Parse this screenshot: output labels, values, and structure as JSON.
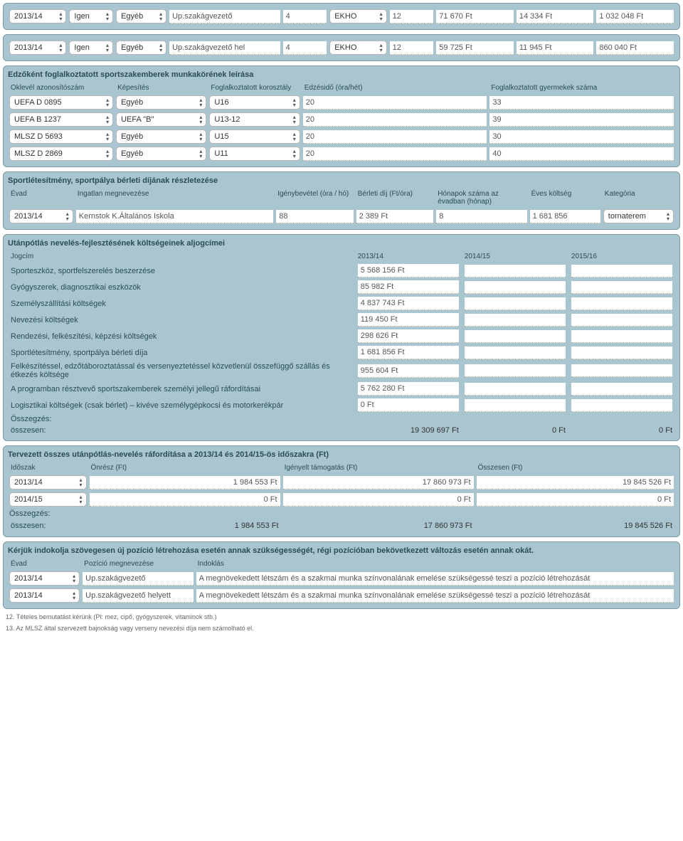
{
  "topRows": [
    {
      "year": "2013/14",
      "opt1": "Igen",
      "opt2": "Egyéb",
      "pos": "Up.szakágvezető",
      "num": "4",
      "tax": "EKHO",
      "mon": "12",
      "c1": "71 670 Ft",
      "c2": "14 334 Ft",
      "c3": "1 032 048 Ft"
    },
    {
      "year": "2013/14",
      "opt1": "Igen",
      "opt2": "Egyéb",
      "pos": "Up.szakágvezető hel",
      "num": "4",
      "tax": "EKHO",
      "mon": "12",
      "c1": "59 725 Ft",
      "c2": "11 945 Ft",
      "c3": "860 040 Ft"
    }
  ],
  "coaches": {
    "title": "Edzőként foglalkoztatott sportszakemberek munkakörének leírása",
    "h": [
      "Oklevél azonosítószám",
      "Képesítés",
      "Foglalkoztatott korosztály",
      "Edzésidő (óra/hét)",
      "Foglalkoztatott gyermekek száma"
    ],
    "rows": [
      {
        "id": "UEFA D 0895",
        "q": "Egyéb",
        "age": "U16",
        "h": "20",
        "n": "33"
      },
      {
        "id": "UEFA B 1237",
        "q": "UEFA \"B\"",
        "age": "U13-12",
        "h": "20",
        "n": "39"
      },
      {
        "id": "MLSZ D 5693",
        "q": "Egyéb",
        "age": "U15",
        "h": "20",
        "n": "30"
      },
      {
        "id": "MLSZ D 2869",
        "q": "Egyéb",
        "age": "U11",
        "h": "20",
        "n": "40"
      }
    ]
  },
  "rental": {
    "title": "Sportlétesítmény, sportpálya bérleti díjának részletezése",
    "h": [
      "Évad",
      "Ingatlan megnevezése",
      "Igénybevétel (óra / hó)",
      "Bérleti díj (Ft/óra)",
      "Hónapok száma az évadban (hónap)",
      "Éves költség",
      "Kategória"
    ],
    "rows": [
      {
        "year": "2013/14",
        "name": "Kernstok K.Általános Iskola",
        "use": "88",
        "fee": "2 389 Ft",
        "mon": "8",
        "yearly": "1 681 856",
        "cat": "tornaterem"
      }
    ]
  },
  "costs": {
    "title": "Utánpótlás nevelés-fejlesztésének költségeinek aljogcímei",
    "h": [
      "Jogcím",
      "2013/14",
      "2014/15",
      "2015/16"
    ],
    "rows": [
      {
        "l": "Sporteszköz, sportfelszerelés beszerzése",
        "v": "5 568 156  Ft"
      },
      {
        "l": "Gyógyszerek, diagnosztikai eszközök",
        "v": "85 982  Ft"
      },
      {
        "l": "Személyszállítási költségek",
        "v": "4 837 743  Ft"
      },
      {
        "l": "Nevezési költségek",
        "v": "119 450 Ft"
      },
      {
        "l": "Rendezési, felkészítési, képzési költségek",
        "v": "298 626 Ft"
      },
      {
        "l": "Sportlétesítmény, sportpálya bérleti díja",
        "v": "1 681 856  Ft"
      },
      {
        "l": "Felkészítéssel, edzőtáboroztatással és versenyeztetéssel közvetlenül összefüggő szállás és étkezés költsége",
        "v": "955 604 Ft"
      },
      {
        "l": "A programban résztvevő sportszakemberek személyi jellegű ráfordításai",
        "v": "5 762 280  Ft"
      },
      {
        "l": "Logisztikai költségek (csak bérlet) – kivéve személygépkocsi és motorkerékpár",
        "v": "0 Ft"
      }
    ],
    "sumLabel": "Összegzés:",
    "totalLabel": "összesen:",
    "total": [
      "19 309 697 Ft",
      "0 Ft",
      "0 Ft"
    ]
  },
  "planned": {
    "title": "Tervezett összes utánpótlás-nevelés ráfordítása a 2013/14 és 2014/15-ös időszakra (Ft)",
    "h": [
      "Időszak",
      "Önrész (Ft)",
      "Igényelt támogatás (Ft)",
      "Összesen (Ft)"
    ],
    "rows": [
      {
        "p": "2013/14",
        "own": "1 984 553 Ft",
        "req": "17 860 973 Ft",
        "tot": "19 845 526 Ft"
      },
      {
        "p": "2014/15",
        "own": "0 Ft",
        "req": "0 Ft",
        "tot": "0 Ft"
      }
    ],
    "sumLabel": "Összegzés:",
    "totalLabel": "összesen:",
    "total": [
      "1 984 553 Ft",
      "17 860 973 Ft",
      "19 845 526 Ft"
    ]
  },
  "justify": {
    "title": "Kérjük indokolja szövegesen új pozíció létrehozása esetén annak szükségességét, régi pozícióban bekövetkezett változás esetén annak okát.",
    "h": [
      "Évad",
      "Pozíció megnevezése",
      "Indoklás"
    ],
    "rows": [
      {
        "y": "2013/14",
        "p": "Up.szakágvezető",
        "r": "A megnövekedett létszám és a szakmai munka színvonalának emelése szükségessé teszi a pozíció létrehozását"
      },
      {
        "y": "2013/14",
        "p": "Up.szakágvezető helyett",
        "r": "A megnövekedett létszám és a szakmai munka színvonalának emelése szükségessé teszi a pozíció létrehozását"
      }
    ]
  },
  "footnotes": [
    "12. Tételes bemutatást kérünk (Pl: mez, cipő, gyógyszerek, vitaminok stb.)",
    "13. Az MLSZ által szervezett bajnokság vagy verseny nevezési díja nem számolható el."
  ]
}
